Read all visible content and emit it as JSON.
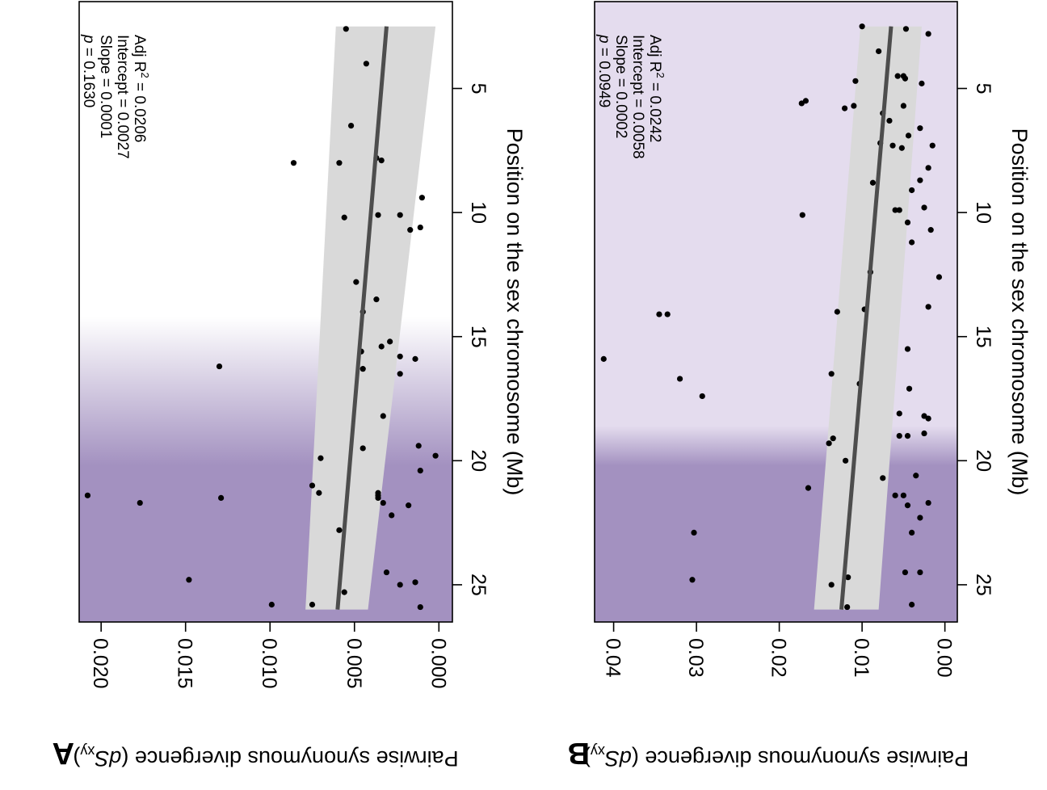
{
  "chart_data": [
    {
      "panel_label": "A",
      "type": "scatter",
      "xlabel": "Position on the sex chromosome (Mb)",
      "ylabel": "Pairwise synonymous divergence (",
      "ylabel_italic": "dS",
      "ylabel_sub": "xy",
      "ylabel_close": ")",
      "xlim": [
        1.5,
        26.5
      ],
      "ylim": [
        -0.0008,
        0.0213
      ],
      "x_ticks": [
        5,
        10,
        15,
        20,
        25
      ],
      "y_ticks": [
        0,
        0.005,
        0.01,
        0.015,
        0.02
      ],
      "y_tick_labels": [
        "0.000",
        "0.005",
        "0.010",
        "0.015",
        "0.020"
      ],
      "shade": {
        "color": "#a391c0",
        "full_from": 20.2,
        "fade_to": 14.2
      },
      "fit": {
        "x0": 2.5,
        "y0": 0.0031,
        "x1": 26.0,
        "y1": 0.006
      },
      "ci_band": {
        "x": [
          2.5,
          26.0
        ],
        "lower": [
          0.0002,
          0.0042
        ],
        "upper": [
          0.0061,
          0.0079
        ]
      },
      "annotation": {
        "line1_prefix": "Adj R",
        "line1_sup": "2",
        "line1_suffix": " = 0.0206",
        "line2": "Intercept = 0.0027",
        "line3": "Slope = 0.0001",
        "line4_italic": "p",
        "line4_suffix": " = 0.1630"
      },
      "points": [
        [
          2.6,
          0.0055
        ],
        [
          4.0,
          0.0043
        ],
        [
          6.5,
          0.0052
        ],
        [
          8.0,
          0.0086
        ],
        [
          8.0,
          0.0059
        ],
        [
          7.8,
          0.0037
        ],
        [
          7.9,
          0.0034
        ],
        [
          9.4,
          0.001
        ],
        [
          10.1,
          0.0023
        ],
        [
          10.1,
          0.0036
        ],
        [
          10.2,
          0.0056
        ],
        [
          10.6,
          0.0011
        ],
        [
          10.7,
          0.0017
        ],
        [
          12.8,
          0.0049
        ],
        [
          13.5,
          0.0037
        ],
        [
          14.0,
          0.0045
        ],
        [
          15.2,
          0.0029
        ],
        [
          15.4,
          0.0034
        ],
        [
          15.6,
          0.0046
        ],
        [
          15.8,
          0.0023
        ],
        [
          15.9,
          0.0014
        ],
        [
          16.2,
          0.013
        ],
        [
          16.3,
          0.0045
        ],
        [
          16.5,
          0.0023
        ],
        [
          18.2,
          0.0033
        ],
        [
          19.4,
          0.0012
        ],
        [
          19.5,
          0.0045
        ],
        [
          19.8,
          0.0002
        ],
        [
          19.9,
          0.007
        ],
        [
          20.4,
          0.0011
        ],
        [
          21.0,
          0.0075
        ],
        [
          21.3,
          0.0071
        ],
        [
          21.3,
          0.0036
        ],
        [
          21.4,
          0.0208
        ],
        [
          21.4,
          0.0036
        ],
        [
          21.5,
          0.0129
        ],
        [
          21.5,
          0.0036
        ],
        [
          21.7,
          0.0177
        ],
        [
          21.7,
          0.0033
        ],
        [
          21.8,
          0.0018
        ],
        [
          22.2,
          0.0028
        ],
        [
          22.8,
          0.0059
        ],
        [
          24.5,
          0.0031
        ],
        [
          24.8,
          0.0148
        ],
        [
          24.9,
          0.0014
        ],
        [
          25.0,
          0.0023
        ],
        [
          25.3,
          0.0056
        ],
        [
          25.8,
          0.0075
        ],
        [
          25.8,
          0.0099
        ],
        [
          25.9,
          0.0011
        ]
      ]
    },
    {
      "panel_label": "B",
      "type": "scatter",
      "xlabel": "Position on the sex chromosome (Mb)",
      "ylabel": "Pairwise synonymous divergence (",
      "ylabel_italic": "dS",
      "ylabel_sub": "xy",
      "ylabel_close": ")",
      "xlim": [
        1.5,
        26.5
      ],
      "ylim": [
        -0.0015,
        0.0423
      ],
      "x_ticks": [
        5,
        10,
        15,
        20,
        25
      ],
      "y_ticks": [
        0,
        0.01,
        0.02,
        0.03,
        0.04
      ],
      "y_tick_labels": [
        "0.00",
        "0.01",
        "0.02",
        "0.03",
        "0.04"
      ],
      "shade": {
        "color": "#a391c0",
        "light_color": "#e4dcee",
        "full_from": 20.2,
        "fade_to": 18.6
      },
      "fit": {
        "x0": 2.5,
        "y0": 0.0065,
        "x1": 26.0,
        "y1": 0.0125
      },
      "ci_band": {
        "x": [
          2.5,
          26.0
        ],
        "lower": [
          0.0028,
          0.008
        ],
        "upper": [
          0.0102,
          0.0158
        ]
      },
      "annotation": {
        "line1_prefix": "Adj R",
        "line1_sup": "2",
        "line1_suffix": " = 0.0242",
        "line2": "Intercept = 0.0058",
        "line3": "Slope = 0.0002",
        "line4_italic": "p",
        "line4_suffix": " = 0.0949"
      },
      "points": [
        [
          2.5,
          0.01
        ],
        [
          2.6,
          0.0047
        ],
        [
          2.8,
          0.002
        ],
        [
          3.5,
          0.008
        ],
        [
          4.5,
          0.005
        ],
        [
          4.5,
          0.0057
        ],
        [
          4.6,
          0.0048
        ],
        [
          4.7,
          0.0108
        ],
        [
          4.8,
          0.0028
        ],
        [
          5.5,
          0.0168
        ],
        [
          5.6,
          0.0173
        ],
        [
          5.7,
          0.011
        ],
        [
          5.8,
          0.0121
        ],
        [
          5.7,
          0.005
        ],
        [
          6.0,
          0.0075
        ],
        [
          6.3,
          0.0067
        ],
        [
          6.6,
          0.003
        ],
        [
          6.9,
          0.0044
        ],
        [
          7.2,
          0.0078
        ],
        [
          7.3,
          0.0063
        ],
        [
          7.3,
          0.0015
        ],
        [
          7.4,
          0.0052
        ],
        [
          8.2,
          0.002
        ],
        [
          8.7,
          0.003
        ],
        [
          8.8,
          0.0087
        ],
        [
          9.1,
          0.004
        ],
        [
          9.8,
          0.0025
        ],
        [
          9.9,
          0.006
        ],
        [
          9.9,
          0.0055
        ],
        [
          10.1,
          0.0172
        ],
        [
          10.4,
          0.0045
        ],
        [
          10.7,
          0.0017
        ],
        [
          11.2,
          0.004
        ],
        [
          12.4,
          0.009
        ],
        [
          12.6,
          0.0007
        ],
        [
          13.8,
          0.002
        ],
        [
          13.9,
          0.0097
        ],
        [
          14.0,
          0.013
        ],
        [
          14.1,
          0.0335
        ],
        [
          14.1,
          0.0345
        ],
        [
          15.5,
          0.0045
        ],
        [
          15.9,
          0.0412
        ],
        [
          16.5,
          0.0137
        ],
        [
          16.9,
          0.0103
        ],
        [
          16.7,
          0.032
        ],
        [
          17.1,
          0.0043
        ],
        [
          17.4,
          0.0293
        ],
        [
          18.1,
          0.0055
        ],
        [
          18.2,
          0.0025
        ],
        [
          18.3,
          0.002
        ],
        [
          18.9,
          0.0025
        ],
        [
          19.0,
          0.0055
        ],
        [
          19.0,
          0.0045
        ],
        [
          19.1,
          0.0135
        ],
        [
          19.3,
          0.014
        ],
        [
          20.0,
          0.012
        ],
        [
          20.6,
          0.0035
        ],
        [
          20.7,
          0.0075
        ],
        [
          21.1,
          0.0165
        ],
        [
          21.4,
          0.006
        ],
        [
          21.4,
          0.005
        ],
        [
          21.7,
          0.002
        ],
        [
          21.8,
          0.0045
        ],
        [
          22.3,
          0.003
        ],
        [
          22.9,
          0.004
        ],
        [
          22.9,
          0.0303
        ],
        [
          24.5,
          0.003
        ],
        [
          24.5,
          0.0048
        ],
        [
          24.7,
          0.0117
        ],
        [
          24.8,
          0.0305
        ],
        [
          25.0,
          0.0137
        ],
        [
          25.8,
          0.004
        ],
        [
          25.9,
          0.0118
        ]
      ]
    }
  ]
}
